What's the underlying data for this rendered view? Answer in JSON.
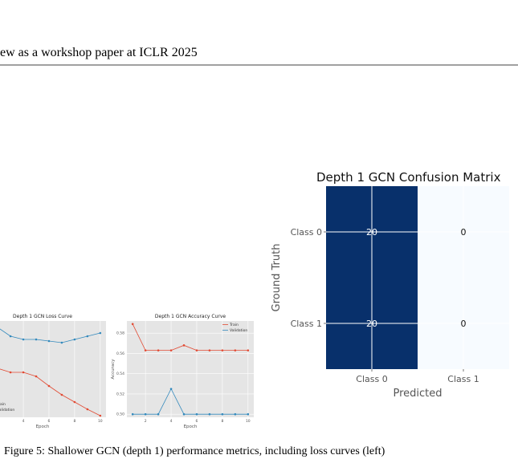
{
  "header": {
    "title": "ew as a workshop paper at ICLR 2025"
  },
  "chart_data": [
    {
      "type": "line",
      "title": "Depth 1 GCN Loss Curve",
      "x_label": "Epoch",
      "x": [
        1,
        2,
        3,
        4,
        5,
        6,
        7,
        8,
        9,
        10
      ],
      "xlim": [
        0.55,
        10.45
      ],
      "xticks": [
        2,
        4,
        6,
        8,
        10
      ],
      "ylim": [
        0.6,
        0.72
      ],
      "grid": true,
      "legend": "lower left",
      "series": [
        {
          "name": "Train",
          "color": "#e24a33",
          "values": [
            0.672,
            0.661,
            0.656,
            0.656,
            0.651,
            0.639,
            0.628,
            0.619,
            0.61,
            0.602
          ]
        },
        {
          "name": "Validation",
          "color": "#348abd",
          "values": [
            0.718,
            0.712,
            0.701,
            0.697,
            0.697,
            0.695,
            0.693,
            0.697,
            0.701,
            0.705
          ]
        }
      ]
    },
    {
      "type": "line",
      "title": "Depth 1 GCN Accuracy Curve",
      "x_label": "Epoch",
      "y_label": "Accuracy",
      "x": [
        1,
        2,
        3,
        4,
        5,
        6,
        7,
        8,
        9,
        10
      ],
      "xlim": [
        0.55,
        10.45
      ],
      "xticks": [
        2,
        4,
        6,
        8,
        10
      ],
      "ylim": [
        0.497,
        0.592
      ],
      "yticks": [
        {
          "value": 0.5,
          "label": "0.50"
        },
        {
          "value": 0.52,
          "label": "0.52"
        },
        {
          "value": 0.54,
          "label": "0.54"
        },
        {
          "value": 0.56,
          "label": "0.56"
        },
        {
          "value": 0.58,
          "label": "0.58"
        }
      ],
      "grid": true,
      "legend": "upper right",
      "series": [
        {
          "name": "Train",
          "color": "#e24a33",
          "values": [
            0.589,
            0.563,
            0.563,
            0.563,
            0.568,
            0.563,
            0.563,
            0.563,
            0.563,
            0.563
          ]
        },
        {
          "name": "Validation",
          "color": "#348abd",
          "values": [
            0.5,
            0.5,
            0.5,
            0.525,
            0.5,
            0.5,
            0.5,
            0.5,
            0.5,
            0.5
          ]
        }
      ]
    },
    {
      "type": "heatmap",
      "title": "Depth 1 GCN Confusion Matrix",
      "x_label": "Predicted",
      "y_label": "Ground Truth",
      "categories": [
        "Class 0",
        "Class 1"
      ],
      "y_categories": [
        "Class 0",
        "Class 1"
      ],
      "values": [
        [
          20,
          0
        ],
        [
          20,
          0
        ]
      ],
      "vlim": [
        0,
        20
      ],
      "colors": [
        "#f7fbff",
        "#08306b"
      ],
      "grid": true
    }
  ],
  "caption": "Figure 5: Shallower GCN (depth 1) performance metrics, including loss curves (left)"
}
